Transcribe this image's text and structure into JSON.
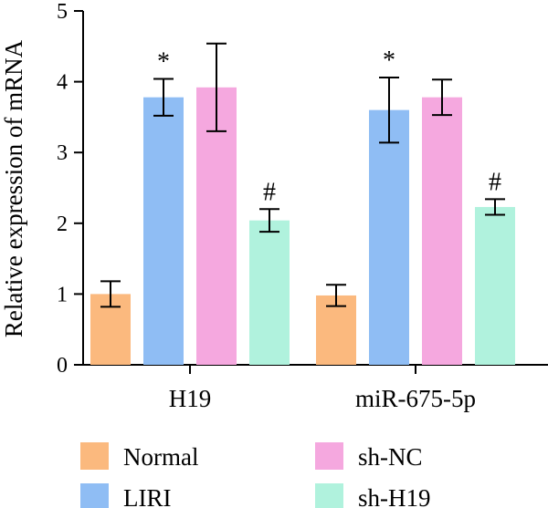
{
  "chart_data": {
    "type": "bar",
    "ylabel": "Relative expression of mRNA",
    "ylim": [
      0,
      5
    ],
    "yticks": [
      "0",
      "1",
      "2",
      "3",
      "4",
      "5"
    ],
    "categories": [
      "H19",
      "miR-675-5p"
    ],
    "series": [
      {
        "name": "Normal",
        "color": "#fbb97e",
        "values": [
          1.0,
          0.98
        ],
        "errors": [
          0.18,
          0.15
        ],
        "annotations": [
          "",
          ""
        ]
      },
      {
        "name": "LIRI",
        "color": "#8fbdf4",
        "values": [
          3.78,
          3.6
        ],
        "errors": [
          0.26,
          0.46
        ],
        "annotations": [
          "*",
          "*"
        ]
      },
      {
        "name": "sh-NC",
        "color": "#f5a8df",
        "values": [
          3.92,
          3.78
        ],
        "errors": [
          0.62,
          0.25
        ],
        "annotations": [
          "",
          ""
        ]
      },
      {
        "name": "sh-H19",
        "color": "#b0f2dd",
        "values": [
          2.04,
          2.23
        ],
        "errors": [
          0.16,
          0.11
        ],
        "annotations": [
          "#",
          "#"
        ]
      }
    ],
    "legend_position": "bottom"
  }
}
